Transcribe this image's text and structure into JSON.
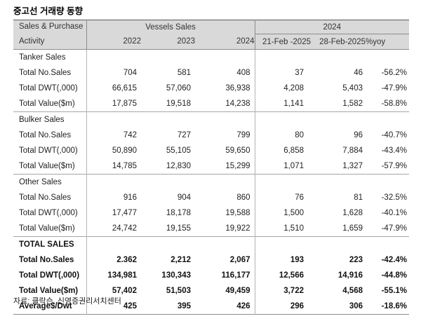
{
  "title": "중고선 거래량 동향",
  "source_note": "자료: 클락슨, 신영증권리서치센터",
  "table": {
    "corner_header": {
      "line1": "Sales & Purchase",
      "line2": "Activity"
    },
    "column_groups": [
      {
        "label": "Vessels Sales",
        "columns": [
          "2022",
          "2023",
          "2024"
        ]
      },
      {
        "label": "2024",
        "columns": [
          "21-Feb -2025",
          "28-Feb-2025",
          "%yoy"
        ]
      }
    ],
    "sections": [
      {
        "name": "Tanker Sales",
        "emphasis": false,
        "rows": [
          {
            "label": "Total No.Sales",
            "values": [
              "704",
              "581",
              "408",
              "37",
              "46",
              "-56.2%"
            ]
          },
          {
            "label": "Total DWT(,000)",
            "values": [
              "66,615",
              "57,060",
              "36,938",
              "4,208",
              "5,403",
              "-47.9%"
            ]
          },
          {
            "label": "Total Value($m)",
            "values": [
              "17,875",
              "19,518",
              "14,238",
              "1,141",
              "1,582",
              "-58.8%"
            ]
          }
        ]
      },
      {
        "name": "Bulker Sales",
        "emphasis": false,
        "rows": [
          {
            "label": "Total No.Sales",
            "values": [
              "742",
              "727",
              "799",
              "80",
              "96",
              "-40.7%"
            ]
          },
          {
            "label": "Total DWT(,000)",
            "values": [
              "50,890",
              "55,105",
              "59,650",
              "6,858",
              "7,884",
              "-43.4%"
            ]
          },
          {
            "label": "Total Value($m)",
            "values": [
              "14,785",
              "12,830",
              "15,299",
              "1,071",
              "1,327",
              "-57.9%"
            ]
          }
        ]
      },
      {
        "name": "Other Sales",
        "emphasis": false,
        "rows": [
          {
            "label": "Total No.Sales",
            "values": [
              "916",
              "904",
              "860",
              "76",
              "81",
              "-32.5%"
            ]
          },
          {
            "label": "Total DWT(,000)",
            "values": [
              "17,477",
              "18,178",
              "19,588",
              "1,500",
              "1,628",
              "-40.1%"
            ]
          },
          {
            "label": "Total Value($m)",
            "values": [
              "24,742",
              "19,155",
              "19,922",
              "1,510",
              "1,659",
              "-47.9%"
            ]
          }
        ]
      },
      {
        "name": "TOTAL SALES",
        "emphasis": true,
        "rows": [
          {
            "label": "Total No.Sales",
            "values": [
              "2.362",
              "2,212",
              "2,067",
              "193",
              "223",
              "-42.4%"
            ]
          },
          {
            "label": "Total DWT(,000)",
            "values": [
              "134,981",
              "130,343",
              "116,177",
              "12,566",
              "14,916",
              "-44.8%"
            ]
          },
          {
            "label": "Total Value($m)",
            "values": [
              "57,402",
              "51,503",
              "49,459",
              "3,722",
              "4,568",
              "-55.1%"
            ]
          },
          {
            "label": "Average$/Dwt",
            "values": [
              "425",
              "395",
              "426",
              "296",
              "306",
              "-18.6%"
            ]
          }
        ]
      }
    ]
  },
  "colors": {
    "header_bg": "#d9d9d9",
    "border_dark": "#595959",
    "border_mid": "#8c8c8c",
    "border_section": "#a6a6a6",
    "border_vertical": "#b3b3b3",
    "text": "#1a1a1a"
  }
}
